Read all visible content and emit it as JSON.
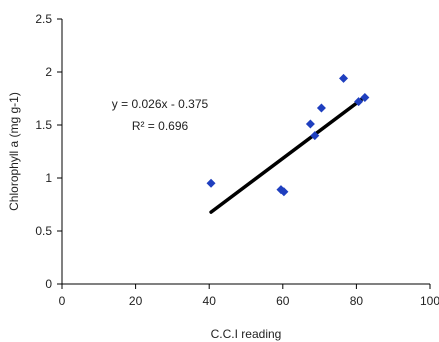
{
  "chart_data": {
    "type": "scatter",
    "title": "",
    "xlabel": "C.C.I reading",
    "ylabel": "Chlorophyll a (mg g-1)",
    "xlim": [
      0,
      100
    ],
    "ylim": [
      0,
      2.5
    ],
    "x_ticks": [
      "0",
      "20",
      "40",
      "60",
      "80",
      "100"
    ],
    "y_ticks": [
      "0",
      "0.5",
      "1",
      "1.5",
      "2",
      "2.5"
    ],
    "grid": false,
    "legend": "none",
    "series": [
      {
        "marker": "diamond",
        "color": "#1f3fbf",
        "points": [
          {
            "x": 40.5,
            "y": 0.95
          },
          {
            "x": 59.5,
            "y": 0.89
          },
          {
            "x": 60.3,
            "y": 0.87
          },
          {
            "x": 67.5,
            "y": 1.51
          },
          {
            "x": 68.7,
            "y": 1.4
          },
          {
            "x": 70.5,
            "y": 1.66
          },
          {
            "x": 76.5,
            "y": 1.94
          },
          {
            "x": 80.6,
            "y": 1.72
          },
          {
            "x": 82.3,
            "y": 1.76
          }
        ]
      }
    ],
    "trendline": {
      "type": "linear",
      "slope": 0.026,
      "intercept": -0.375,
      "x_range": [
        40.5,
        82.5
      ],
      "color": "#000000",
      "equation_label": "y = 0.026x - 0.375",
      "r2_label": "R² = 0.696"
    }
  }
}
